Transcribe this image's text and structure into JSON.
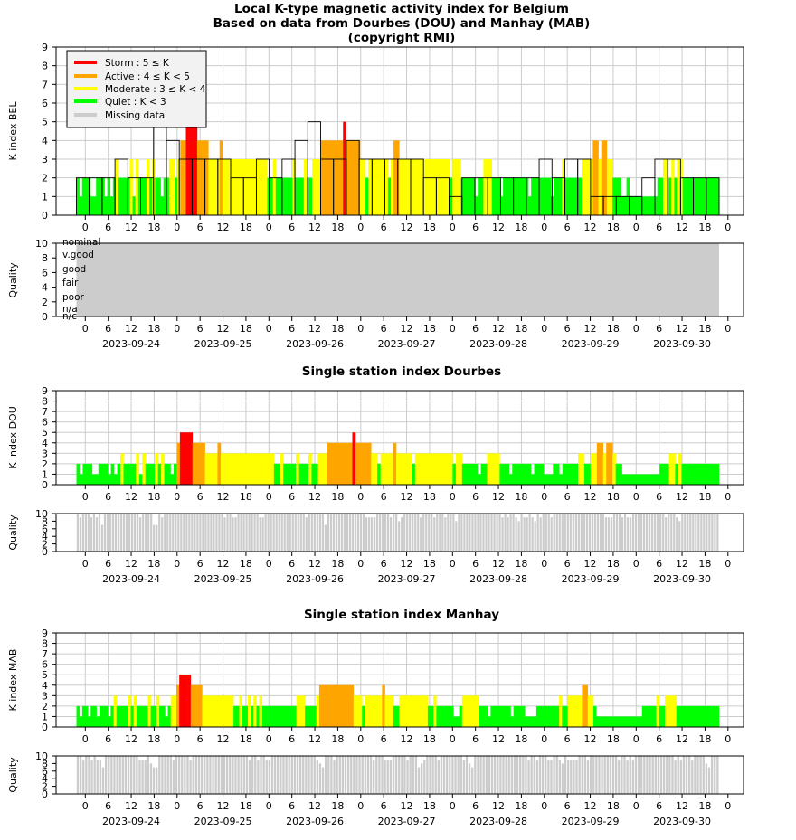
{
  "colors": {
    "storm": "#ff0000",
    "active": "#ffa500",
    "moderate": "#ffff00",
    "quiet": "#00ff00",
    "missing": "#cccccc",
    "grid": "#cccccc",
    "axis": "#000000"
  },
  "header": {
    "title_line1": "Local K-type magnetic activity index for Belgium",
    "title_line2": "Based on data from Dourbes (DOU) and Manhay (MAB)",
    "title_line3": "(copyright RMI)"
  },
  "legend": {
    "storm": "Storm : 5 ≤ K",
    "active": "Active : 4 ≤ K < 5",
    "moderate": "Moderate : 3 ≤ K < 4",
    "quiet": "Quiet : K < 3",
    "missing": "Missing data"
  },
  "quality_labels": [
    "nominal",
    "v.good",
    "good",
    "fair",
    "poor",
    "n/a",
    "n/c"
  ],
  "axis_text": {
    "x_hours": [
      "0",
      "6",
      "12",
      "18",
      "0",
      "6",
      "12",
      "18",
      "0",
      "6",
      "12",
      "18",
      "0",
      "6",
      "12",
      "18",
      "0",
      "6",
      "12",
      "18",
      "0",
      "6",
      "12",
      "18",
      "0",
      "6",
      "12",
      "18",
      "0"
    ],
    "dates": [
      "2023-09-24",
      "2023-09-25",
      "2023-09-26",
      "2023-09-27",
      "2023-09-28",
      "2023-09-29",
      "2023-09-30"
    ],
    "k_ticks": [
      "0",
      "1",
      "2",
      "3",
      "4",
      "5",
      "6",
      "7",
      "8",
      "9"
    ],
    "q_ticks": [
      "0",
      "2",
      "4",
      "6",
      "8",
      "10"
    ]
  },
  "chart_data": [
    {
      "type": "bar",
      "title": "Local K-type magnetic activity index for Belgium",
      "ylabel": "K index BEL",
      "ylim": [
        0,
        9
      ],
      "x_unit": "3-hour intervals starting 2023-09-23 21:00 UT",
      "values": [
        2,
        2,
        2,
        3,
        2,
        2,
        5,
        4,
        3,
        3,
        3,
        3,
        2,
        2,
        3,
        2,
        3,
        4,
        5,
        3,
        3,
        4,
        3,
        3,
        3,
        3,
        3,
        2,
        2,
        1,
        2,
        2,
        2,
        2,
        2,
        2,
        3,
        2,
        3,
        3,
        1,
        1,
        1,
        1,
        2,
        3,
        3,
        2,
        2,
        2
      ],
      "fine_values": [
        2,
        1,
        2,
        2,
        2,
        1,
        1,
        2,
        2,
        2,
        1,
        2,
        1,
        2,
        3,
        2,
        2,
        2,
        2,
        3,
        1,
        3,
        2,
        2,
        2,
        3,
        2,
        3,
        2,
        2,
        1,
        2,
        2,
        3,
        3,
        2,
        3,
        4,
        4,
        5,
        5,
        5,
        5,
        4,
        4,
        4,
        4,
        3,
        3,
        3,
        3,
        4,
        3,
        3,
        3,
        3,
        3,
        3,
        3,
        3,
        3,
        3,
        3,
        3,
        3,
        3,
        3,
        3,
        2,
        2,
        3,
        2,
        2,
        2,
        2,
        2,
        2,
        3,
        2,
        2,
        2,
        3,
        2,
        2,
        3,
        3,
        3,
        4,
        4,
        4,
        4,
        4,
        4,
        4,
        4,
        5,
        4,
        4,
        4,
        4,
        4,
        3,
        3,
        2,
        3,
        3,
        3,
        3,
        3,
        3,
        3,
        2,
        3,
        4,
        4,
        3,
        3,
        3,
        3,
        3,
        3,
        3,
        3,
        3,
        3,
        3,
        3,
        3,
        3,
        3,
        3,
        3,
        3,
        2,
        3,
        3,
        3,
        2,
        2,
        2,
        2,
        2,
        1,
        2,
        2,
        3,
        3,
        3,
        2,
        2,
        2,
        1,
        2,
        2,
        2,
        2,
        2,
        2,
        2,
        2,
        2,
        1,
        2,
        2,
        2,
        2,
        2,
        2,
        2,
        1,
        2,
        2,
        2,
        3,
        2,
        2,
        2,
        2,
        2,
        2,
        3,
        3,
        3,
        3,
        4,
        4,
        3,
        4,
        4,
        3,
        3,
        2,
        2,
        2,
        1,
        1,
        2,
        1,
        1,
        1,
        1,
        1,
        1,
        1,
        1,
        1,
        1,
        2,
        2,
        3,
        3,
        2,
        3,
        2,
        3,
        3,
        2,
        2,
        2,
        2,
        2,
        2,
        2,
        2,
        2,
        2,
        2,
        2,
        2
      ],
      "quality": "nominal"
    },
    {
      "type": "bar",
      "title": "Single station index Dourbes",
      "ylabel": "K index DOU",
      "ylim": [
        0,
        9
      ],
      "values": [
        2,
        1,
        2,
        2,
        2,
        1,
        1,
        2,
        2,
        2,
        1,
        2,
        1,
        2,
        3,
        2,
        2,
        2,
        2,
        3,
        1,
        3,
        2,
        2,
        2,
        3,
        2,
        3,
        2,
        2,
        1,
        2,
        4,
        5,
        5,
        5,
        5,
        4,
        4,
        4,
        4,
        3,
        3,
        3,
        3,
        4,
        3,
        3,
        3,
        3,
        3,
        3,
        3,
        3,
        3,
        3,
        3,
        3,
        3,
        3,
        3,
        3,
        3,
        2,
        2,
        3,
        2,
        2,
        2,
        2,
        3,
        2,
        2,
        2,
        3,
        2,
        2,
        3,
        3,
        3,
        4,
        4,
        4,
        4,
        4,
        4,
        4,
        4,
        5,
        4,
        4,
        4,
        4,
        4,
        3,
        3,
        2,
        3,
        3,
        3,
        3,
        4,
        3,
        3,
        3,
        3,
        3,
        2,
        3,
        3,
        3,
        3,
        3,
        3,
        3,
        3,
        3,
        3,
        3,
        3,
        2,
        3,
        3,
        2,
        2,
        2,
        2,
        2,
        1,
        2,
        2,
        3,
        3,
        3,
        3,
        2,
        2,
        2,
        1,
        2,
        2,
        2,
        2,
        2,
        2,
        1,
        2,
        2,
        2,
        1,
        1,
        1,
        2,
        2,
        1,
        2,
        2,
        2,
        2,
        2,
        3,
        3,
        2,
        2,
        3,
        3,
        4,
        4,
        3,
        4,
        4,
        3,
        2,
        2,
        1,
        1,
        1,
        1,
        1,
        1,
        1,
        1,
        1,
        1,
        1,
        1,
        2,
        2,
        2,
        3,
        3,
        2,
        3,
        2,
        2,
        2,
        2,
        2,
        2,
        2,
        2,
        2,
        2,
        2,
        2
      ],
      "quality_levels": [
        10,
        9,
        10,
        10,
        10,
        9,
        10,
        9,
        10,
        7,
        10,
        10,
        10,
        10,
        10,
        10,
        10,
        10,
        10,
        10,
        10,
        10,
        10,
        9,
        10,
        10,
        10,
        10,
        7,
        7,
        10,
        9,
        10,
        10,
        10,
        10,
        10,
        10,
        10,
        10,
        10,
        10,
        10,
        10,
        10,
        10,
        10,
        10,
        10,
        10,
        10,
        10,
        10,
        10,
        9,
        10,
        10,
        9,
        9,
        10,
        10,
        10,
        10,
        10,
        10,
        10,
        10,
        9,
        9,
        10,
        10,
        10,
        10,
        10,
        10,
        10,
        10,
        10,
        10,
        10,
        10,
        10,
        10,
        10,
        9,
        10,
        10,
        10,
        10,
        10,
        10,
        7,
        10,
        10,
        10,
        10,
        10,
        10,
        10,
        10,
        10,
        10,
        10,
        10,
        10,
        10,
        9,
        9,
        9,
        9,
        10,
        10,
        10,
        10,
        10,
        9,
        10,
        10,
        8,
        9,
        10,
        10,
        10,
        10,
        10,
        10,
        9,
        10,
        10,
        10,
        10,
        9,
        10,
        10,
        10,
        9,
        10,
        10,
        10,
        8,
        10,
        10,
        10,
        10,
        10,
        10,
        10,
        10,
        10,
        10,
        10,
        10,
        10,
        10,
        10,
        10,
        9,
        10,
        9,
        10,
        10,
        9,
        8,
        10,
        9,
        9,
        10,
        9,
        8,
        10,
        9,
        10,
        10,
        10,
        9,
        10,
        10,
        10,
        10,
        10,
        10,
        10,
        10,
        10,
        10,
        10,
        10,
        10,
        10,
        10,
        10,
        10,
        10,
        10,
        9,
        9,
        9,
        10,
        10,
        10,
        9,
        10,
        9,
        9,
        10,
        10,
        10,
        10,
        10,
        10,
        10,
        10,
        10,
        10,
        10,
        10,
        9,
        10,
        10,
        10,
        9,
        8,
        10,
        10,
        10,
        10,
        10,
        10,
        10,
        10,
        10,
        10,
        10,
        10,
        10,
        10
      ]
    },
    {
      "type": "bar",
      "title": "Single station index Manhay",
      "ylabel": "K index MAB",
      "ylim": [
        0,
        9
      ],
      "values": [
        2,
        1,
        2,
        2,
        1,
        2,
        2,
        1,
        2,
        2,
        2,
        1,
        2,
        3,
        2,
        2,
        2,
        2,
        3,
        2,
        3,
        2,
        2,
        2,
        2,
        3,
        2,
        2,
        3,
        2,
        2,
        1,
        2,
        3,
        3,
        4,
        5,
        5,
        5,
        5,
        4,
        4,
        4,
        4,
        3,
        3,
        3,
        3,
        3,
        3,
        3,
        3,
        3,
        3,
        3,
        2,
        2,
        3,
        2,
        2,
        3,
        2,
        3,
        2,
        3,
        2,
        2,
        2,
        2,
        2,
        2,
        2,
        2,
        2,
        2,
        2,
        2,
        3,
        3,
        3,
        2,
        2,
        2,
        2,
        3,
        4,
        4,
        4,
        4,
        4,
        4,
        4,
        4,
        4,
        4,
        4,
        4,
        3,
        3,
        3,
        2,
        3,
        3,
        3,
        3,
        3,
        3,
        4,
        3,
        3,
        3,
        2,
        2,
        3,
        3,
        3,
        3,
        3,
        3,
        3,
        3,
        3,
        3,
        2,
        2,
        3,
        2,
        2,
        2,
        2,
        2,
        2,
        1,
        1,
        2,
        3,
        3,
        3,
        3,
        3,
        3,
        2,
        2,
        2,
        1,
        2,
        2,
        2,
        2,
        2,
        2,
        2,
        1,
        2,
        2,
        2,
        2,
        1,
        1,
        1,
        1,
        2,
        2,
        2,
        2,
        2,
        2,
        2,
        2,
        3,
        2,
        2,
        3,
        3,
        3,
        3,
        3,
        4,
        4,
        3,
        3,
        2,
        1,
        1,
        1,
        1,
        1,
        1,
        1,
        1,
        1,
        1,
        1,
        1,
        1,
        1,
        1,
        1,
        2,
        2,
        2,
        2,
        2,
        3,
        2,
        2,
        3,
        3,
        3,
        3,
        2,
        2,
        2,
        2,
        2,
        2,
        2,
        2,
        2,
        2,
        2,
        2,
        2,
        2,
        2
      ],
      "quality_levels": [
        10,
        10,
        9,
        10,
        10,
        9,
        10,
        9,
        9,
        7,
        10,
        10,
        10,
        10,
        10,
        10,
        10,
        10,
        10,
        10,
        10,
        10,
        9,
        9,
        9,
        10,
        8,
        7,
        7,
        10,
        10,
        10,
        10,
        10,
        9,
        10,
        10,
        10,
        10,
        10,
        9,
        10,
        10,
        10,
        10,
        10,
        10,
        10,
        10,
        10,
        10,
        10,
        10,
        10,
        10,
        10,
        10,
        10,
        10,
        10,
        10,
        9,
        10,
        10,
        9,
        10,
        10,
        9,
        9,
        10,
        10,
        10,
        10,
        10,
        10,
        10,
        10,
        10,
        10,
        10,
        10,
        10,
        10,
        10,
        10,
        9,
        8,
        7,
        10,
        10,
        10,
        9,
        10,
        10,
        10,
        10,
        10,
        10,
        10,
        10,
        10,
        10,
        10,
        10,
        10,
        9,
        10,
        10,
        10,
        9,
        9,
        9,
        10,
        10,
        10,
        10,
        10,
        9,
        10,
        10,
        10,
        7,
        8,
        9,
        10,
        10,
        10,
        10,
        9,
        10,
        10,
        10,
        10,
        10,
        10,
        10,
        10,
        9,
        10,
        8,
        7,
        10,
        10,
        10,
        10,
        10,
        10,
        10,
        10,
        10,
        10,
        10,
        10,
        10,
        10,
        10,
        10,
        10,
        10,
        10,
        9,
        10,
        10,
        9,
        10,
        10,
        10,
        9,
        9,
        10,
        10,
        9,
        8,
        10,
        9,
        9,
        9,
        9,
        10,
        10,
        10,
        9,
        10,
        10,
        10,
        10,
        10,
        10,
        10,
        10,
        10,
        10,
        9,
        10,
        10,
        9,
        10,
        9,
        10,
        10,
        10,
        10,
        10,
        10,
        10,
        10,
        10,
        10,
        10,
        10,
        10,
        10,
        9,
        10,
        9,
        10,
        10,
        10,
        9,
        10,
        10,
        10,
        10,
        8,
        7,
        10,
        10,
        10
      ]
    }
  ]
}
